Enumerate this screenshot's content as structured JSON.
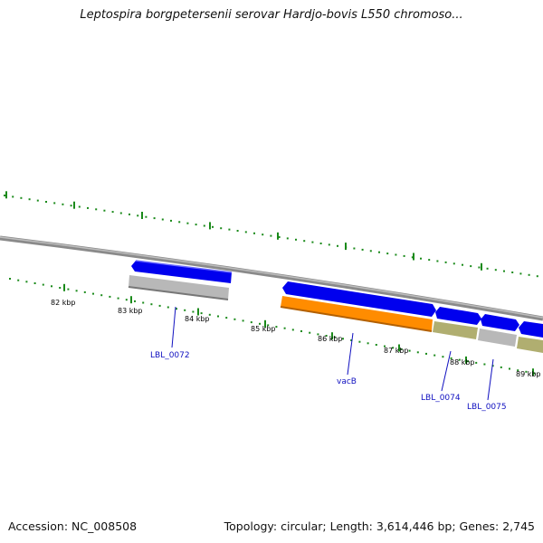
{
  "title": "Leptospira borgpetersenii serovar Hardjo-bovis L550 chromoso...",
  "footer": {
    "accession": "Accession: NC_008508",
    "topology": "Topology: circular; Length: 3,614,446 bp; Genes: 2,745"
  },
  "scale_labels": [
    "82 kbp",
    "83 kbp",
    "84 kbp",
    "85 kbp",
    "86 kbp",
    "87 kbp",
    "88 kbp",
    "89 kbp"
  ],
  "gene_labels": [
    "LBL_0072",
    "vacB",
    "LBL_0074",
    "LBL_0075"
  ],
  "colors": {
    "cds_forward": "#0000ee",
    "feature_gray": "#b8b8b8",
    "feature_orange": "#ff8c00",
    "feature_olive": "#b0ae70",
    "tick_green": "#1a8a1a",
    "backbone": "#8a8a8a",
    "label_blue": "#1010c0"
  }
}
